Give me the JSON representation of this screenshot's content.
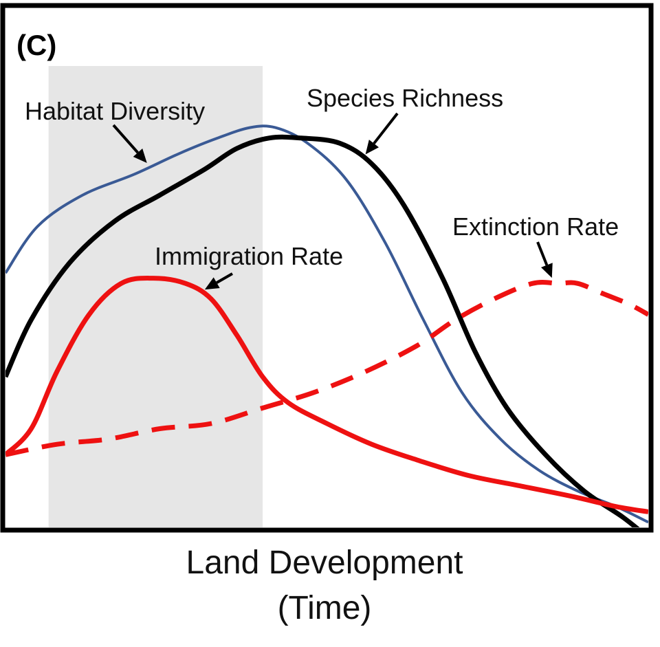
{
  "chart_data": {
    "type": "line",
    "panel_label": "(C)",
    "xlabel": [
      "Land Development",
      "(Time)"
    ],
    "ylabel": "",
    "grid": false,
    "legend": "none",
    "axes_ticks": false,
    "shaded_region": {
      "x": [
        0.067,
        0.4
      ],
      "color": "#e6e6e6"
    },
    "series": [
      {
        "name": "Habitat Diversity",
        "color": "#3a5a95",
        "dash": false,
        "x": [
          0.0,
          0.05,
          0.12,
          0.2,
          0.27,
          0.33,
          0.38,
          0.42,
          0.47,
          0.53,
          0.59,
          0.65,
          0.71,
          0.77,
          0.83,
          0.89,
          0.95,
          1.0
        ],
        "y": [
          0.49,
          0.58,
          0.64,
          0.68,
          0.72,
          0.75,
          0.77,
          0.77,
          0.74,
          0.67,
          0.55,
          0.4,
          0.26,
          0.17,
          0.11,
          0.07,
          0.04,
          0.01
        ]
      },
      {
        "name": "Species Richness",
        "color": "#000000",
        "dash": false,
        "x": [
          0.0,
          0.04,
          0.1,
          0.17,
          0.24,
          0.31,
          0.36,
          0.41,
          0.46,
          0.52,
          0.57,
          0.62,
          0.68,
          0.73,
          0.78,
          0.84,
          0.9,
          0.96,
          1.0
        ],
        "y": [
          0.29,
          0.4,
          0.51,
          0.59,
          0.64,
          0.69,
          0.73,
          0.75,
          0.75,
          0.74,
          0.7,
          0.62,
          0.48,
          0.34,
          0.23,
          0.14,
          0.07,
          0.02,
          -0.02
        ]
      },
      {
        "name": "Immigration Rate",
        "color": "#ee1111",
        "dash": false,
        "x": [
          0.0,
          0.04,
          0.08,
          0.13,
          0.18,
          0.23,
          0.28,
          0.32,
          0.36,
          0.4,
          0.44,
          0.5,
          0.57,
          0.64,
          0.72,
          0.8,
          0.88,
          0.95,
          1.0
        ],
        "y": [
          0.14,
          0.19,
          0.3,
          0.41,
          0.47,
          0.48,
          0.47,
          0.44,
          0.37,
          0.29,
          0.24,
          0.2,
          0.16,
          0.13,
          0.1,
          0.08,
          0.06,
          0.04,
          0.03
        ]
      },
      {
        "name": "Extinction Rate",
        "color": "#ee1111",
        "dash": true,
        "x": [
          0.0,
          0.08,
          0.16,
          0.24,
          0.32,
          0.4,
          0.48,
          0.56,
          0.64,
          0.7,
          0.76,
          0.82,
          0.86,
          0.89,
          0.93,
          0.97,
          1.0
        ],
        "y": [
          0.14,
          0.16,
          0.17,
          0.19,
          0.2,
          0.23,
          0.26,
          0.3,
          0.35,
          0.4,
          0.44,
          0.47,
          0.47,
          0.47,
          0.45,
          0.43,
          0.41
        ]
      }
    ],
    "annotations": [
      {
        "text": "Species Richness",
        "series": "Species Richness",
        "at_x": 0.56
      },
      {
        "text": "Habitat Diversity",
        "series": "Habitat Diversity",
        "at_x": 0.22
      },
      {
        "text": "Extinction Rate",
        "series": "Extinction Rate",
        "at_x": 0.85
      },
      {
        "text": "Immigration Rate",
        "series": "Immigration Rate",
        "at_x": 0.31
      }
    ]
  }
}
